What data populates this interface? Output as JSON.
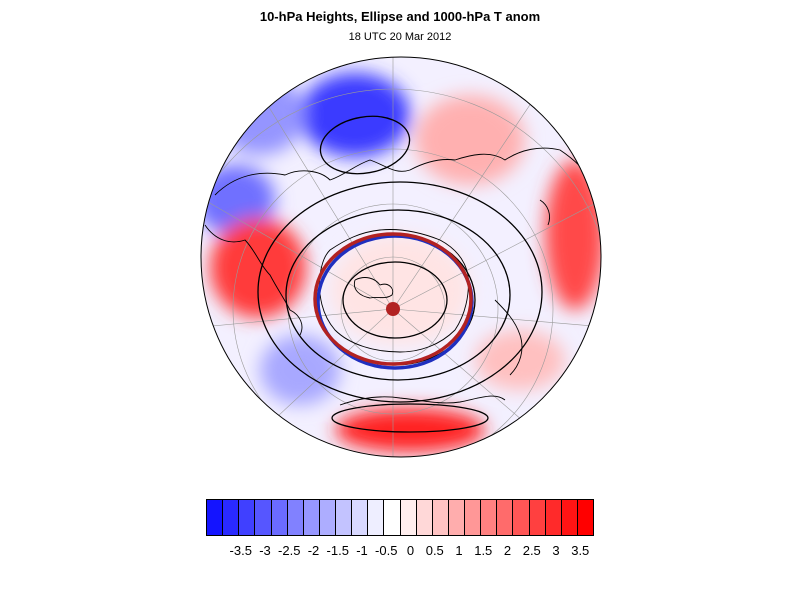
{
  "title": "10-hPa Heights, Ellipse and 1000-hPa T anom",
  "subtitle": "18 UTC 20 Mar 2012",
  "map": {
    "projection": "polar stereographic (north pole)",
    "fill_variable": "1000-hPa T anom",
    "contour_variable": "10-hPa Heights",
    "overlay": "Ellipse",
    "contour_color": "#000000",
    "coastline_color": "#000000",
    "ellipse_colors": [
      "#b22222",
      "#1f2fbf"
    ],
    "center_marker_color": "#b22222"
  },
  "colorbar": {
    "colors": [
      "#1414ff",
      "#2a2aff",
      "#4040ff",
      "#5656ff",
      "#6b6bff",
      "#8181ff",
      "#9797ff",
      "#adadff",
      "#c3c3ff",
      "#d8d8ff",
      "#eeeeff",
      "#ffffff",
      "#ffeeee",
      "#ffd8d8",
      "#ffc3c3",
      "#ffadad",
      "#ff9797",
      "#ff8181",
      "#ff6b6b",
      "#ff5656",
      "#ff4040",
      "#ff2a2a",
      "#ff1414",
      "#ff0000"
    ],
    "tick_labels": [
      "-3.5",
      "-3",
      "-2.5",
      "-2",
      "-1.5",
      "-1",
      "-0.5",
      "0",
      "0.5",
      "1",
      "1.5",
      "2",
      "2.5",
      "3",
      "3.5"
    ]
  }
}
